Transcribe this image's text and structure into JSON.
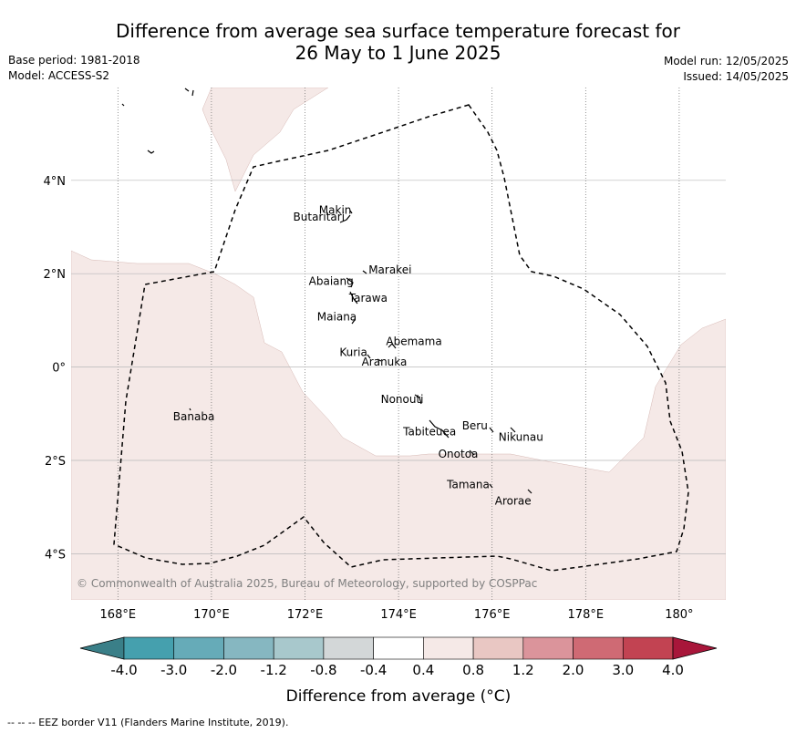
{
  "title": {
    "line1": "Difference from average sea surface temperature forecast for",
    "line2": "26 May to 1 June 2025"
  },
  "meta": {
    "base_period": "Base period: 1981-2018",
    "model": "Model: ACCESS-S2",
    "model_run": "Model run: 12/05/2025",
    "issued": "Issued: 14/05/2025"
  },
  "map": {
    "lon_range": [
      167,
      181
    ],
    "lat_range": [
      -5,
      6
    ],
    "lon_ticks": [
      {
        "value": 168,
        "label": "168°E"
      },
      {
        "value": 170,
        "label": "170°E"
      },
      {
        "value": 172,
        "label": "172°E"
      },
      {
        "value": 174,
        "label": "174°E"
      },
      {
        "value": 176,
        "label": "176°E"
      },
      {
        "value": 178,
        "label": "178°E"
      },
      {
        "value": 180,
        "label": "180°"
      }
    ],
    "lat_ticks": [
      {
        "value": 4,
        "label": "4°N"
      },
      {
        "value": 2,
        "label": "2°N"
      },
      {
        "value": 0,
        "label": "0°"
      },
      {
        "value": -2,
        "label": "2°S"
      },
      {
        "value": -4,
        "label": "4°S"
      }
    ],
    "anomaly_fill_color": "#f5e9e7",
    "anomaly_band": "0.4 to 0.8",
    "copyright": "© Commonwealth of Australia 2025, Bureau of Meteorology, supported by COSPPac",
    "islands": [
      {
        "name": "Makin",
        "lon": 173.0,
        "lat": 3.3
      },
      {
        "name": "Butaritari",
        "lon": 172.8,
        "lat": 3.1
      },
      {
        "name": "Marakei",
        "lon": 173.3,
        "lat": 2.0
      },
      {
        "name": "Abaiang",
        "lon": 172.9,
        "lat": 1.8
      },
      {
        "name": "Tarawa",
        "lon": 173.0,
        "lat": 1.4
      },
      {
        "name": "Maiana",
        "lon": 173.0,
        "lat": 1.0
      },
      {
        "name": "Abemama",
        "lon": 173.85,
        "lat": 0.45
      },
      {
        "name": "Kuria",
        "lon": 173.4,
        "lat": 0.2
      },
      {
        "name": "Aranuka",
        "lon": 173.6,
        "lat": 0.15
      },
      {
        "name": "Nonouti",
        "lon": 174.4,
        "lat": -0.65
      },
      {
        "name": "Tabiteuea",
        "lon": 174.8,
        "lat": -1.4
      },
      {
        "name": "Beru",
        "lon": 176.0,
        "lat": -1.3
      },
      {
        "name": "Nikunau",
        "lon": 176.45,
        "lat": -1.35
      },
      {
        "name": "Onotoa",
        "lon": 175.55,
        "lat": -1.8
      },
      {
        "name": "Tamana",
        "lon": 175.97,
        "lat": -2.5
      },
      {
        "name": "Arorae",
        "lon": 176.82,
        "lat": -2.65
      },
      {
        "name": "Banaba",
        "lon": 169.53,
        "lat": -0.85
      }
    ]
  },
  "colorbar": {
    "ticks": [
      "-4.0",
      "-3.0",
      "-2.0",
      "-1.2",
      "-0.8",
      "-0.4",
      "0.4",
      "0.8",
      "1.2",
      "2.0",
      "3.0",
      "4.0"
    ],
    "low_color": "#3a7f88",
    "high_color": "#a8163a",
    "colors": [
      "#45a0ae",
      "#66abb8",
      "#86b7c1",
      "#a8c8cc",
      "#d3d7d8",
      "#ffffff",
      "#f5e9e7",
      "#e9c7c3",
      "#db949b",
      "#cf6a74",
      "#c24352"
    ],
    "label": "Difference from average (°C)"
  },
  "footer": "--  --  -- EEZ border V11 (Flanders Marine Institute, 2019)."
}
